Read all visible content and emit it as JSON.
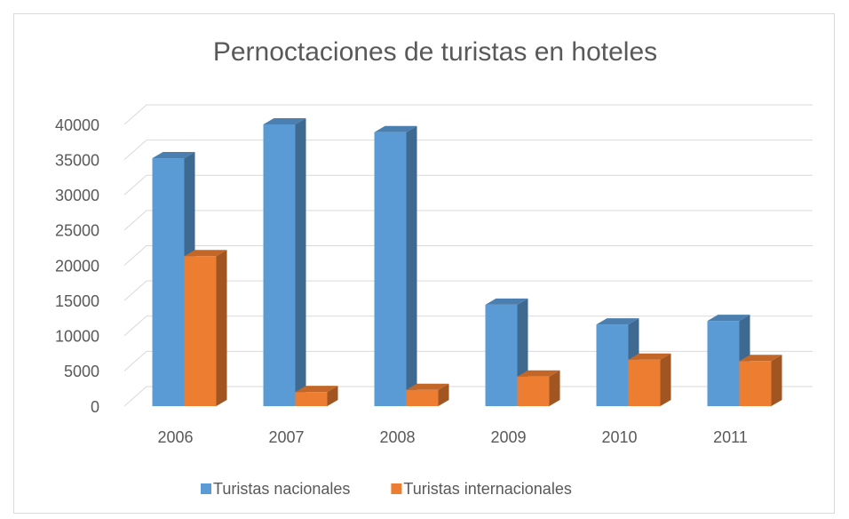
{
  "chart_data": {
    "type": "bar3d",
    "title": "Pernoctaciones de turistas en hoteles",
    "categories": [
      "2006",
      "2007",
      "2008",
      "2009",
      "2010",
      "2011"
    ],
    "series": [
      {
        "name": "Turistas nacionales",
        "color": "#5b9bd5",
        "values": [
          35200,
          40000,
          38900,
          14400,
          11600,
          12100
        ]
      },
      {
        "name": "Turistas internacionales",
        "color": "#ed7d31",
        "values": [
          21300,
          2000,
          2300,
          4200,
          6600,
          6400
        ]
      }
    ],
    "ylim": [
      0,
      40000
    ],
    "yticks": [
      0,
      5000,
      10000,
      15000,
      20000,
      25000,
      30000,
      35000,
      40000
    ],
    "grid": true,
    "legend": "bottom"
  }
}
